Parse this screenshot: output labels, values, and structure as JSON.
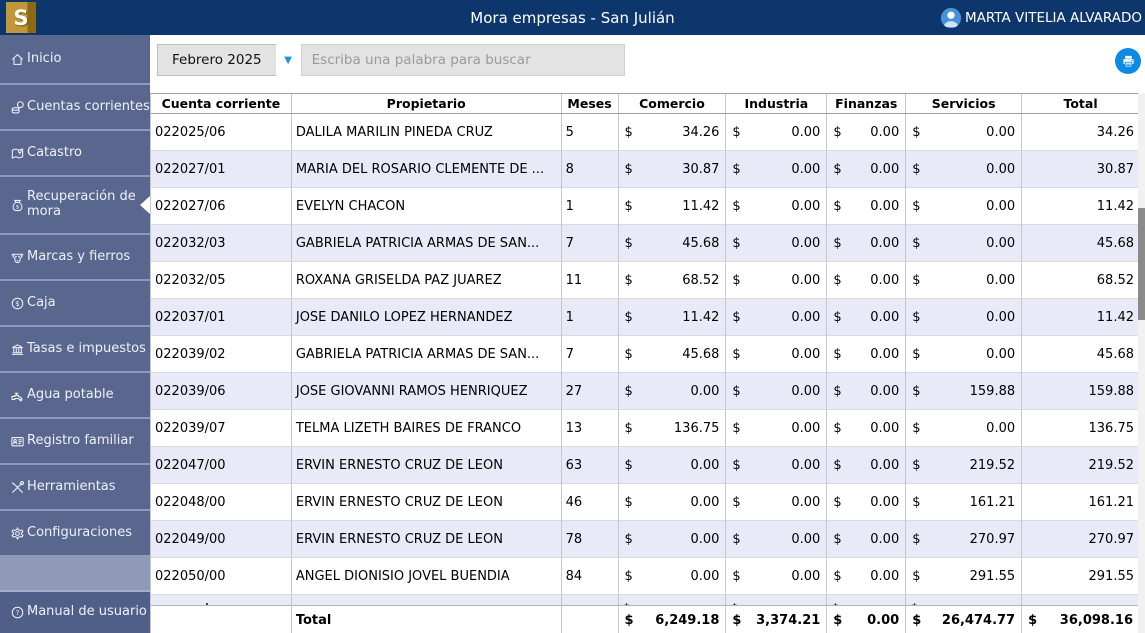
{
  "topbar": {
    "logo_letter": "S",
    "title": "Mora empresas - San Julián",
    "user_name": "MARTA VITELIA ALVARADO"
  },
  "sidebar": {
    "items": [
      {
        "label": "Inicio",
        "icon": "home-icon",
        "selected": false
      },
      {
        "label": "Cuentas corrientes",
        "icon": "coins-icon",
        "selected": false
      },
      {
        "label": "Catastro",
        "icon": "map-icon",
        "selected": false
      },
      {
        "label": "Recuperación de mora",
        "icon": "money-bag-icon",
        "selected": true
      },
      {
        "label": "Marcas y fierros",
        "icon": "cow-icon",
        "selected": false
      },
      {
        "label": "Caja",
        "icon": "dollar-circle-icon",
        "selected": false
      },
      {
        "label": "Tasas e impuestos",
        "icon": "bank-icon",
        "selected": false
      },
      {
        "label": "Agua potable",
        "icon": "faucet-icon",
        "selected": false
      },
      {
        "label": "Registro familiar",
        "icon": "id-card-icon",
        "selected": false
      },
      {
        "label": "Herramientas",
        "icon": "tools-icon",
        "selected": false
      },
      {
        "label": "Configuraciones",
        "icon": "gear-icon",
        "selected": false
      }
    ],
    "bottom_item": {
      "label": "Manual de usuario",
      "icon": "question-icon"
    }
  },
  "filters": {
    "period_value": "Febrero 2025",
    "search_placeholder": "Escriba una palabra para buscar",
    "print_icon": "printer-icon"
  },
  "table": {
    "columns": [
      "Cuenta corriente",
      "Propietario",
      "Meses",
      "Comercio",
      "Industria",
      "Finanzas",
      "Servicios",
      "Total"
    ],
    "currency_symbol": "$",
    "rows": [
      {
        "cuenta": "022025/06",
        "propietario": "DALILA MARILIN PINEDA CRUZ",
        "meses": "5",
        "comercio": "34.26",
        "industria": "0.00",
        "finanzas": "0.00",
        "servicios": "0.00",
        "total": "34.26"
      },
      {
        "cuenta": "022027/01",
        "propietario": "MARIA DEL ROSARIO CLEMENTE DE ...",
        "meses": "8",
        "comercio": "30.87",
        "industria": "0.00",
        "finanzas": "0.00",
        "servicios": "0.00",
        "total": "30.87"
      },
      {
        "cuenta": "022027/06",
        "propietario": "EVELYN CHACON",
        "meses": "1",
        "comercio": "11.42",
        "industria": "0.00",
        "finanzas": "0.00",
        "servicios": "0.00",
        "total": "11.42"
      },
      {
        "cuenta": "022032/03",
        "propietario": "GABRIELA PATRICIA ARMAS DE SAN...",
        "meses": "7",
        "comercio": "45.68",
        "industria": "0.00",
        "finanzas": "0.00",
        "servicios": "0.00",
        "total": "45.68"
      },
      {
        "cuenta": "022032/05",
        "propietario": "ROXANA GRISELDA PAZ JUAREZ",
        "meses": "11",
        "comercio": "68.52",
        "industria": "0.00",
        "finanzas": "0.00",
        "servicios": "0.00",
        "total": "68.52"
      },
      {
        "cuenta": "022037/01",
        "propietario": "JOSE DANILO LOPEZ HERNANDEZ",
        "meses": "1",
        "comercio": "11.42",
        "industria": "0.00",
        "finanzas": "0.00",
        "servicios": "0.00",
        "total": "11.42"
      },
      {
        "cuenta": "022039/02",
        "propietario": "GABRIELA PATRICIA ARMAS DE SAN...",
        "meses": "7",
        "comercio": "45.68",
        "industria": "0.00",
        "finanzas": "0.00",
        "servicios": "0.00",
        "total": "45.68"
      },
      {
        "cuenta": "022039/06",
        "propietario": "JOSE GIOVANNI RAMOS HENRIQUEZ",
        "meses": "27",
        "comercio": "0.00",
        "industria": "0.00",
        "finanzas": "0.00",
        "servicios": "159.88",
        "total": "159.88"
      },
      {
        "cuenta": "022039/07",
        "propietario": "TELMA LIZETH BAIRES DE FRANCO",
        "meses": "13",
        "comercio": "136.75",
        "industria": "0.00",
        "finanzas": "0.00",
        "servicios": "0.00",
        "total": "136.75"
      },
      {
        "cuenta": "022047/00",
        "propietario": "ERVIN ERNESTO CRUZ DE LEON",
        "meses": "63",
        "comercio": "0.00",
        "industria": "0.00",
        "finanzas": "0.00",
        "servicios": "219.52",
        "total": "219.52"
      },
      {
        "cuenta": "022048/00",
        "propietario": "ERVIN ERNESTO CRUZ DE LEON",
        "meses": "46",
        "comercio": "0.00",
        "industria": "0.00",
        "finanzas": "0.00",
        "servicios": "161.21",
        "total": "161.21"
      },
      {
        "cuenta": "022049/00",
        "propietario": "ERVIN ERNESTO CRUZ DE LEON",
        "meses": "78",
        "comercio": "0.00",
        "industria": "0.00",
        "finanzas": "0.00",
        "servicios": "270.97",
        "total": "270.97"
      },
      {
        "cuenta": "022050/00",
        "propietario": "ANGEL DIONISIO JOVEL BUENDIA",
        "meses": "84",
        "comercio": "0.00",
        "industria": "0.00",
        "finanzas": "0.00",
        "servicios": "291.55",
        "total": "291.55"
      }
    ],
    "total_row": {
      "label": "Total",
      "comercio": "6,249.18",
      "industria": "3,374.21",
      "finanzas": "0.00",
      "servicios": "26,474.77",
      "total": "36,098.16"
    }
  },
  "colors": {
    "topbar_bg": "#0d366d",
    "sidebar_bg": "#59678f",
    "row_alt_bg": "#e9eaf7",
    "accent_blue": "#1e8fe6",
    "print_button_blue": "#0d8be4",
    "logo_gold": "#c0983a"
  }
}
